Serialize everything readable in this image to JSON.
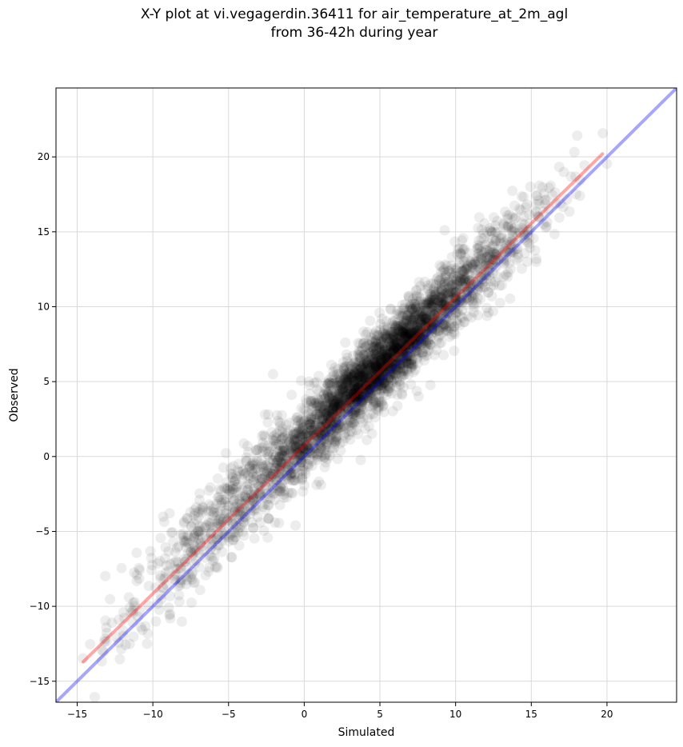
{
  "chart_data": {
    "type": "scatter",
    "title": "X-Y plot at vi.vegagerdin.36411 for air_temperature_at_2m_agl",
    "subtitle": "from 36-42h during year",
    "xlabel": "Simulated",
    "ylabel": "Observed",
    "xlim": [
      -16.4,
      24.6
    ],
    "ylim": [
      -16.4,
      24.6
    ],
    "x_ticks": [
      -15,
      -10,
      -5,
      0,
      5,
      10,
      15,
      20
    ],
    "y_ticks": [
      -15,
      -10,
      -5,
      0,
      5,
      10,
      15,
      20
    ],
    "x_tick_labels": [
      "−15",
      "−10",
      "−5",
      "0",
      "5",
      "10",
      "15",
      "20"
    ],
    "y_tick_labels": [
      "−15",
      "−10",
      "−5",
      "0",
      "5",
      "10",
      "15",
      "20"
    ],
    "grid": true,
    "point_color": "#000000",
    "point_alpha": 0.07,
    "point_count": 3600,
    "point_distribution": {
      "x_range": [
        -14.8,
        20
      ],
      "relation": "observed ≈ 1.0 × simulated + 1.2",
      "spread_sd": 1.3
    },
    "lines": [
      {
        "name": "fit",
        "color": "#ff0000",
        "alpha": 0.35,
        "x": [
          -14.6,
          19.7
        ],
        "y": [
          -13.7,
          20.2
        ]
      },
      {
        "name": "1:1",
        "color": "#0000ff",
        "alpha": 0.35,
        "x": [
          -16.4,
          24.6
        ],
        "y": [
          -16.4,
          24.6
        ]
      }
    ]
  }
}
